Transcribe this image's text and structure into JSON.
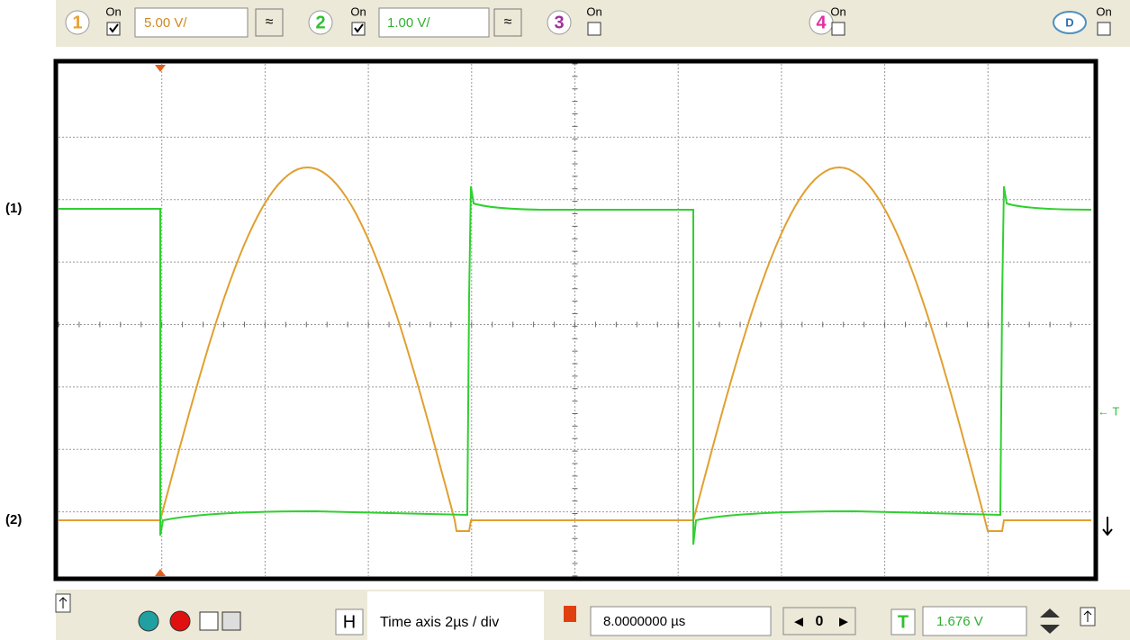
{
  "toolbar": {
    "channels": [
      {
        "number": "1",
        "on": "On",
        "scale": "5.00 V/"
      },
      {
        "number": "2",
        "on": "On",
        "scale": "1.00 V/"
      },
      {
        "number": "3",
        "on": "On"
      },
      {
        "number": "4",
        "on": "On"
      },
      {
        "number": "D",
        "on": "On"
      }
    ]
  },
  "labels": {
    "trace1": "(1)",
    "trace2": "(2)"
  },
  "side": {
    "trigger": "← T"
  },
  "bottom": {
    "h": "H",
    "timebase": "Time axis 2µs / div",
    "delay": "8.0000000 µs",
    "position": "0",
    "t": "T",
    "level": "1.676 V"
  }
}
